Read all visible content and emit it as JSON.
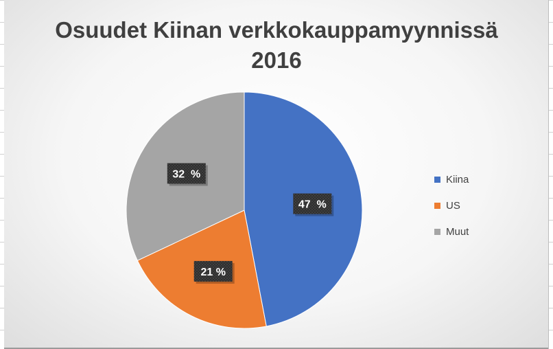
{
  "chart_data": {
    "type": "pie",
    "title_line1": "Osuudet Kiinan verkkokauppamyynnissä",
    "title_line2": "2016",
    "slices": [
      {
        "name": "Kiina",
        "value": 47,
        "label": "47  %",
        "color": "#4472C4"
      },
      {
        "name": "US",
        "value": 21,
        "label": "21 %",
        "color": "#ED7D31"
      },
      {
        "name": "Muut",
        "value": 32,
        "label": "32  %",
        "color": "#A5A5A5"
      }
    ],
    "legend_position": "right"
  }
}
